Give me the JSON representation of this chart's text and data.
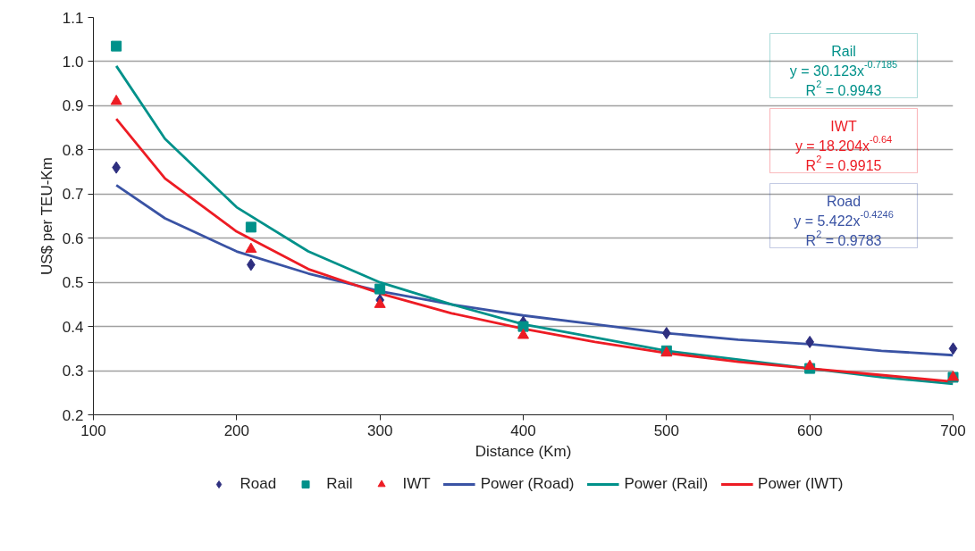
{
  "chart_data": {
    "type": "scatter",
    "xlabel": "Distance (Km)",
    "ylabel": "US$ per TEU-Km",
    "x": [
      116,
      210,
      300,
      400,
      500,
      600,
      700
    ],
    "series": [
      {
        "name": "Road",
        "color": "#2e2f7f",
        "marker": "diamond",
        "values": [
          0.76,
          0.54,
          0.46,
          0.41,
          0.385,
          0.365,
          0.35
        ]
      },
      {
        "name": "Rail",
        "color": "#00918a",
        "marker": "square",
        "values": [
          1.035,
          0.625,
          0.485,
          0.4,
          0.345,
          0.305,
          0.285
        ]
      },
      {
        "name": "IWT",
        "color": "#ed1c24",
        "marker": "triangle",
        "values": [
          0.91,
          0.575,
          0.45,
          0.38,
          0.34,
          0.31,
          0.285
        ]
      },
      {
        "name": "Power (Road)",
        "type": "line",
        "color": "#3a53a4",
        "x": [
          116,
          150,
          200,
          250,
          300,
          350,
          400,
          450,
          500,
          550,
          600,
          650,
          700
        ],
        "values": [
          0.72,
          0.645,
          0.57,
          0.52,
          0.48,
          0.45,
          0.425,
          0.405,
          0.385,
          0.37,
          0.36,
          0.345,
          0.335
        ]
      },
      {
        "name": "Power (Rail)",
        "type": "line",
        "color": "#00918a",
        "x": [
          116,
          150,
          200,
          250,
          300,
          350,
          400,
          450,
          500,
          550,
          600,
          650,
          700
        ],
        "values": [
          0.99,
          0.825,
          0.67,
          0.57,
          0.5,
          0.45,
          0.405,
          0.375,
          0.345,
          0.325,
          0.305,
          0.285,
          0.27
        ]
      },
      {
        "name": "Power (IWT)",
        "type": "line",
        "color": "#ed1c24",
        "x": [
          116,
          150,
          200,
          250,
          300,
          350,
          400,
          450,
          500,
          550,
          600,
          650,
          700
        ],
        "values": [
          0.87,
          0.735,
          0.615,
          0.53,
          0.475,
          0.43,
          0.395,
          0.365,
          0.34,
          0.32,
          0.305,
          0.29,
          0.275
        ]
      }
    ],
    "annotations": [
      "Rail\ny = 30.123x$^{-0.7185}$\nR$^{2}$ = 0.9943",
      "IWT\ny = 18.204x$^{-0.64}$\nR$^{2}$ = 0.9915",
      "Road\ny = 5.422x$^{-0.4246}$\nR$^{2}$ = 0.9783"
    ],
    "xlim": [
      100,
      700
    ],
    "xticks": [
      100,
      200,
      300,
      400,
      500,
      600,
      700
    ],
    "ylim": [
      0.2,
      1.1
    ],
    "yticks": [
      0.2,
      0.3,
      0.4,
      0.5,
      0.6,
      0.7,
      0.8,
      0.9,
      {
        "value": 1.0,
        "label": "1.0"
      },
      1.1
    ],
    "grid": "y",
    "legend": "bottom",
    "line_style": "solid"
  }
}
